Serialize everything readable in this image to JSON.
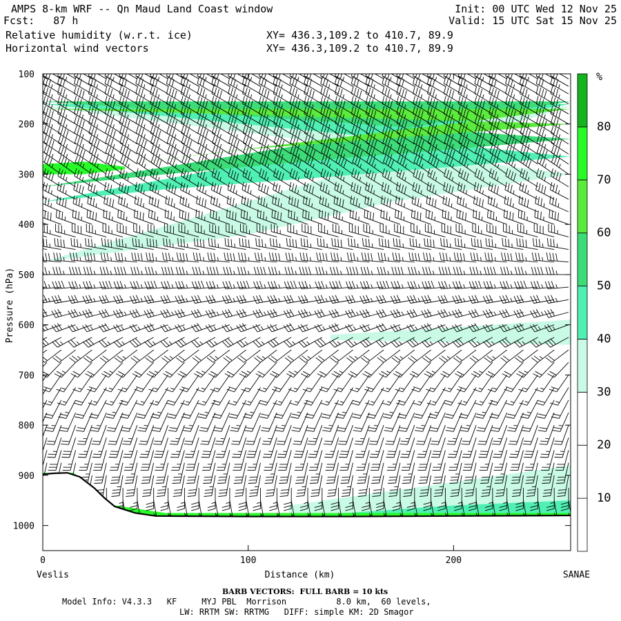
{
  "header": {
    "title": "AMPS 8-km WRF -- Qn Maud Land Coast window",
    "fcst": "Fcst:   87 h",
    "init": "Init: 00 UTC Wed 12 Nov 25",
    "valid": "Valid: 15 UTC Sat 15 Nov 25",
    "field1": "Relative humidity (w.r.t. ice)",
    "field2": "Horizontal wind vectors",
    "xy1": "XY= 436.3,109.2 to 410.7, 89.9",
    "xy2": "XY= 436.3,109.2 to 410.7, 89.9"
  },
  "footer": {
    "barb_note": "BARB VECTORS:  FULL BARB = 10 kts",
    "model_info": "Model Info: V4.3.3   KF     MYJ PBL  Morrison          8.0 km,  60 levels,",
    "physics": "LW: RRTM SW: RRTMG   DIFF: simple KM: 2D Smagor"
  },
  "chart_data": {
    "type": "heatmap",
    "title": "AMPS 8-km WRF -- Qn Maud Land Coast window",
    "field": "Relative humidity (w.r.t. ice)",
    "overlay": "Horizontal wind vectors (barbs)",
    "xlabel": "Distance (km)",
    "ylabel": "Pressure (hPa)",
    "x_left_label": "Veslis",
    "x_right_label": "SANAE",
    "xlim": [
      0,
      257
    ],
    "ylim": [
      1050,
      100
    ],
    "x_ticks": [
      0,
      100,
      200
    ],
    "y_ticks": [
      100,
      200,
      300,
      400,
      500,
      600,
      700,
      800,
      900,
      1000
    ],
    "colorbar": {
      "unit": "%",
      "levels": [
        0,
        10,
        20,
        30,
        40,
        50,
        60,
        70,
        80,
        90
      ],
      "tick_labels": [
        "10",
        "20",
        "30",
        "40",
        "50",
        "60",
        "70",
        "80"
      ],
      "colors": [
        "#ffffff",
        "#ffffff",
        "#ffffff",
        "#c8fae6",
        "#50f0b4",
        "#3cdc78",
        "#5aeb3c",
        "#28fa28",
        "#14b41e"
      ]
    },
    "rh_layers": [
      {
        "level": "30-40",
        "color": "#c8fae6",
        "top": [
          [
            0,
            165
          ],
          [
            257,
            165
          ]
        ],
        "bottom": [
          [
            0,
            475
          ],
          [
            100,
            420
          ],
          [
            170,
            355
          ],
          [
            257,
            300
          ]
        ]
      },
      {
        "level": "40-50",
        "color": "#50f0b4",
        "top": [
          [
            0,
            160
          ],
          [
            257,
            160
          ]
        ],
        "bottom": [
          [
            0,
            355
          ],
          [
            60,
            330
          ],
          [
            140,
            305
          ],
          [
            200,
            285
          ],
          [
            257,
            265
          ]
        ]
      },
      {
        "level": "50-60",
        "color": "#3cdc78",
        "top": [
          [
            0,
            155
          ],
          [
            257,
            155
          ]
        ],
        "bottom": [
          [
            0,
            325
          ],
          [
            60,
            300
          ],
          [
            140,
            270
          ],
          [
            200,
            250
          ],
          [
            257,
            230
          ]
        ]
      },
      {
        "level": "60-70",
        "color": "#5aeb3c",
        "top": [
          [
            0,
            170
          ],
          [
            257,
            170
          ]
        ],
        "bottom": [
          [
            0,
            300
          ],
          [
            40,
            280
          ],
          [
            100,
            250
          ],
          [
            180,
            225
          ],
          [
            257,
            200
          ]
        ]
      },
      {
        "level": "70-80",
        "color": "#28fa28",
        "top": [
          [
            0,
            280
          ],
          [
            20,
            275
          ],
          [
            40,
            285
          ]
        ],
        "bottom": [
          [
            40,
            290
          ],
          [
            20,
            300
          ],
          [
            0,
            300
          ]
        ]
      },
      {
        "level": "30-40 mid",
        "color": "#c8fae6",
        "top": [
          [
            140,
            620
          ],
          [
            200,
            605
          ],
          [
            257,
            590
          ]
        ],
        "bottom": [
          [
            257,
            640
          ],
          [
            200,
            635
          ],
          [
            140,
            630
          ]
        ]
      },
      {
        "level": "30-40 low",
        "color": "#c8fae6",
        "top": [
          [
            120,
            960
          ],
          [
            180,
            925
          ],
          [
            257,
            880
          ]
        ],
        "bottom": [
          [
            257,
            985
          ],
          [
            120,
            985
          ]
        ]
      },
      {
        "level": "40-50 low",
        "color": "#50f0b4",
        "top": [
          [
            130,
            980
          ],
          [
            200,
            960
          ],
          [
            257,
            950
          ]
        ],
        "bottom": [
          [
            257,
            985
          ],
          [
            130,
            985
          ]
        ]
      },
      {
        "level": "60-70 low",
        "color": "#28fa28",
        "top": [
          [
            0,
            895
          ],
          [
            15,
            895
          ],
          [
            35,
            960
          ],
          [
            60,
            975
          ],
          [
            257,
            975
          ]
        ],
        "bottom": [
          [
            257,
            985
          ],
          [
            60,
            985
          ],
          [
            35,
            975
          ],
          [
            15,
            905
          ],
          [
            0,
            905
          ]
        ]
      }
    ],
    "terrain_pressure": {
      "x": [
        0,
        5,
        12,
        18,
        25,
        30,
        35,
        45,
        55,
        100,
        150,
        200,
        257
      ],
      "p": [
        898,
        896,
        895,
        903,
        925,
        945,
        962,
        975,
        981,
        982,
        982,
        981,
        980
      ]
    },
    "barbs": {
      "full_barb_kts": 10,
      "columns_x_km": [
        2,
        9,
        16,
        24,
        31,
        39,
        46,
        54,
        61,
        69,
        76,
        84,
        91,
        99,
        106,
        114,
        121,
        129,
        136,
        144,
        151,
        159,
        166,
        174,
        181,
        189,
        196,
        204,
        211,
        219,
        226,
        234,
        241,
        249,
        256
      ],
      "levels_hPa": [
        110,
        125,
        140,
        160,
        180,
        200,
        220,
        240,
        260,
        280,
        300,
        325,
        350,
        375,
        400,
        425,
        450,
        475,
        500,
        525,
        550,
        575,
        600,
        625,
        650,
        675,
        700,
        725,
        750,
        775,
        800,
        825,
        850,
        875,
        900,
        925,
        950,
        975
      ],
      "profile": [
        {
          "p": 110,
          "speed_kts": 30,
          "from_deg": 300
        },
        {
          "p": 200,
          "speed_kts": 35,
          "from_deg": 300
        },
        {
          "p": 300,
          "speed_kts": 35,
          "from_deg": 305
        },
        {
          "p": 400,
          "speed_kts": 35,
          "from_deg": 290
        },
        {
          "p": 500,
          "speed_kts": 35,
          "from_deg": 270
        },
        {
          "p": 600,
          "speed_kts": 25,
          "from_deg": 250
        },
        {
          "p": 700,
          "speed_kts": 15,
          "from_deg": 215
        },
        {
          "p": 800,
          "speed_kts": 20,
          "from_deg": 200
        },
        {
          "p": 900,
          "speed_kts": 30,
          "from_deg": 190
        },
        {
          "p": 975,
          "speed_kts": 20,
          "from_deg": 160
        }
      ]
    }
  }
}
